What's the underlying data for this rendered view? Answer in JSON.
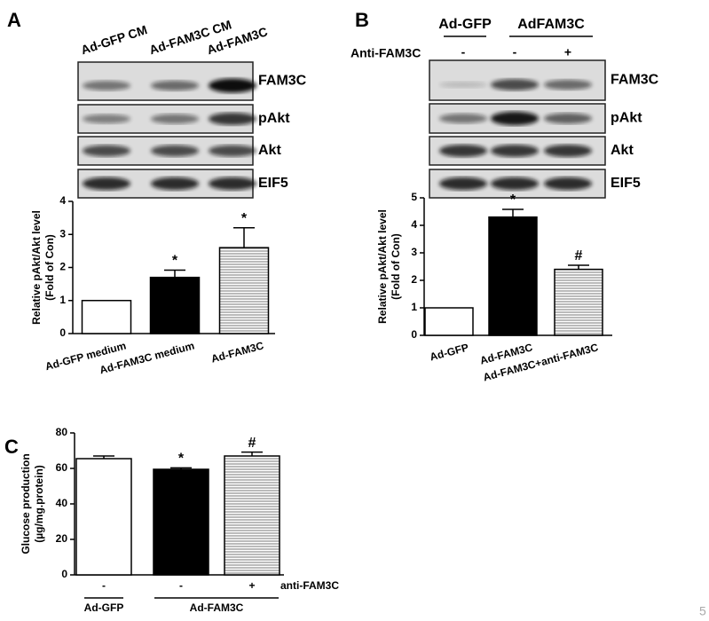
{
  "page_number": "5",
  "chart_data": [
    {
      "type": "bar",
      "panel": "A",
      "blot": {
        "lanes": [
          "Ad-GFP CM",
          "Ad-FAM3C CM",
          "Ad-FAM3C"
        ],
        "bands": [
          "FAM3C",
          "pAkt",
          "Akt",
          "EIF5"
        ]
      },
      "ylabel": [
        "Relative pAkt/Akt level",
        "(Fold of Con)"
      ],
      "categories": [
        "Ad-GFP medium",
        "Ad-FAM3C medium",
        "Ad-FAM3C"
      ],
      "values": [
        1,
        1.7,
        2.6
      ],
      "errors": [
        null,
        0.22,
        0.6
      ],
      "annotations": [
        null,
        "*",
        "*"
      ],
      "colors": [
        "#ffffff",
        "#000000",
        "#ffffff"
      ],
      "hatch": [
        false,
        false,
        true
      ],
      "ylim": [
        0,
        4
      ],
      "yticks": [
        0,
        1,
        2,
        3,
        4
      ]
    },
    {
      "type": "bar",
      "panel": "B",
      "blot": {
        "groups": [
          "Ad-GFP",
          "AdFAM3C"
        ],
        "treatment_label": "Anti-FAM3C",
        "treatment": [
          "-",
          "-",
          "+"
        ],
        "bands": [
          "FAM3C",
          "pAkt",
          "Akt",
          "EIF5"
        ]
      },
      "ylabel": [
        "Relative pAkt/Akt  level",
        "(Fold of Con)"
      ],
      "categories": [
        "Ad-GFP",
        "Ad-FAM3C",
        "Ad-FAM3C+anti-FAM3C"
      ],
      "values": [
        1,
        4.3,
        2.4
      ],
      "errors": [
        null,
        0.28,
        0.15
      ],
      "annotations": [
        null,
        "*",
        "#"
      ],
      "colors": [
        "#ffffff",
        "#000000",
        "#ffffff"
      ],
      "hatch": [
        false,
        false,
        true
      ],
      "ylim": [
        0,
        5
      ],
      "yticks": [
        0,
        1,
        2,
        3,
        4,
        5
      ]
    },
    {
      "type": "bar",
      "panel": "C",
      "ylabel": [
        "Glucose production",
        "(µg/mg.protein)"
      ],
      "categories": [
        "-",
        "-",
        "+"
      ],
      "treatment_label": "anti-FAM3C",
      "groups": [
        "Ad-GFP",
        "Ad-FAM3C"
      ],
      "values": [
        65.5,
        59.5,
        67
      ],
      "errors": [
        1.5,
        0.8,
        2.2
      ],
      "annotations": [
        null,
        "*",
        "#"
      ],
      "colors": [
        "#ffffff",
        "#000000",
        "#ffffff"
      ],
      "hatch": [
        false,
        false,
        true
      ],
      "ylim": [
        0,
        80
      ],
      "yticks": [
        0,
        20,
        40,
        60,
        80
      ]
    }
  ]
}
